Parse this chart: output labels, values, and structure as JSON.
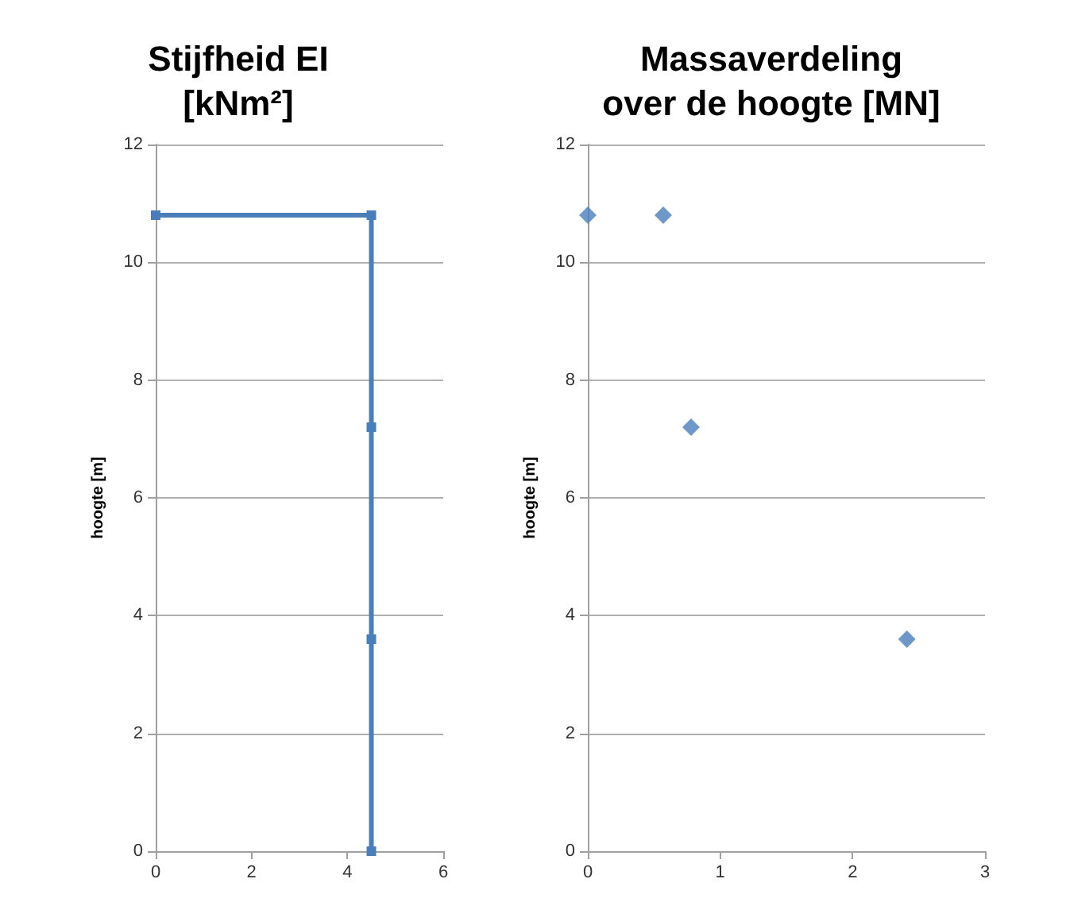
{
  "chart_data": [
    {
      "type": "line",
      "title": "Stijfheid EI\n[kNm²]",
      "ylabel": "hoogte [m]",
      "x": [
        0,
        4.5,
        4.5,
        4.5,
        4.5
      ],
      "series": [
        {
          "color": "#4a7ebb",
          "values": [
            10.8,
            10.8,
            7.2,
            3.6,
            0
          ]
        }
      ],
      "xlim": [
        0,
        6
      ],
      "xticks": [
        0,
        2,
        4,
        6
      ],
      "ylim": [
        0,
        12
      ],
      "yticks": [
        0,
        2,
        4,
        6,
        8,
        10,
        12
      ],
      "grid": "y",
      "marker": "square",
      "line_style": "solid"
    },
    {
      "type": "scatter",
      "title": "Massaverdeling\nover de hoogte [MN]",
      "ylabel": "hoogte [m]",
      "x": [
        0,
        0.57,
        0.78,
        2.41
      ],
      "series": [
        {
          "color": "#4a7ebb",
          "values": [
            10.8,
            10.8,
            7.2,
            3.6
          ]
        }
      ],
      "xlim": [
        0,
        3
      ],
      "xticks": [
        0,
        1,
        2,
        3
      ],
      "ylim": [
        0,
        12
      ],
      "yticks": [
        0,
        2,
        4,
        6,
        8,
        10,
        12
      ],
      "grid": "y",
      "marker": "diamond"
    }
  ]
}
